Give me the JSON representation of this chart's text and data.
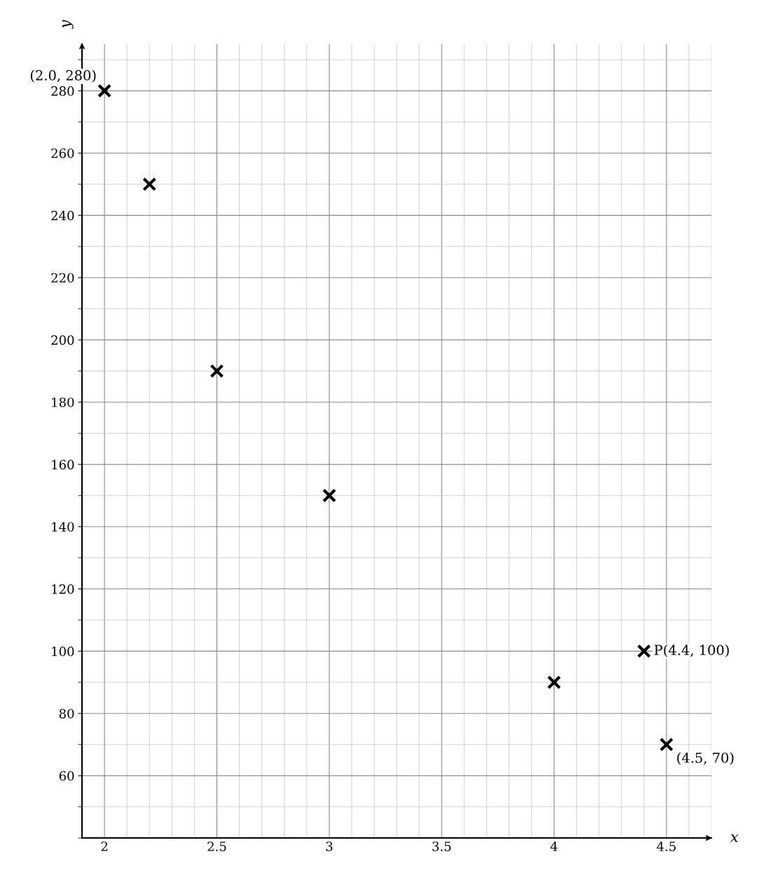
{
  "chart_data": {
    "type": "scatter",
    "xlabel": "x",
    "ylabel": "y",
    "x": [
      2.0,
      2.2,
      2.5,
      3.0,
      4.0,
      4.4,
      4.5
    ],
    "series": [
      {
        "color": "#000000",
        "values": [
          280,
          250,
          190,
          150,
          90,
          100,
          70
        ]
      }
    ],
    "marker": "cross",
    "xlim": [
      1.9,
      4.7
    ],
    "ylim": [
      40,
      295
    ],
    "xticks": [
      2,
      2.5,
      3,
      3.5,
      4,
      4.5
    ],
    "yticks": [
      60,
      80,
      100,
      120,
      140,
      160,
      180,
      200,
      220,
      240,
      260,
      280
    ],
    "grid": true,
    "annotations": [
      {
        "text": "(2.0, 280)",
        "x": 2.0,
        "y": 280
      },
      {
        "text": "P(4.4, 100)",
        "x": 4.4,
        "y": 100
      },
      {
        "text": "(4.5, 70)",
        "x": 4.5,
        "y": 70
      }
    ]
  }
}
